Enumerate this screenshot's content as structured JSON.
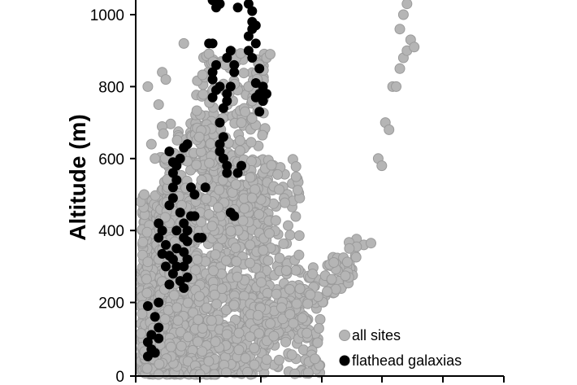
{
  "chart_data": {
    "type": "scatter",
    "ylabel": "Altitude (m)",
    "xlabel": "",
    "ylim": [
      0,
      1000
    ],
    "yticks": [
      0,
      200,
      400,
      600,
      800,
      1000
    ],
    "ytick_labels": [
      "0",
      "200",
      "400",
      "600",
      "800",
      "1000"
    ],
    "legend_position": "bottom-right",
    "colors": {
      "all_sites": "#b5b5b5",
      "all_sites_edge": "#9a9a9a",
      "flathead": "#000000"
    },
    "series": [
      {
        "name": "all sites",
        "clusters": [
          {
            "count": 700,
            "x_range": [
              0.0,
              0.15
            ],
            "y_range": [
              0,
              500
            ]
          },
          {
            "count": 400,
            "x_range": [
              0.05,
              0.25
            ],
            "y_range": [
              100,
              700
            ]
          },
          {
            "count": 350,
            "x_range": [
              0.15,
              0.35
            ],
            "y_range": [
              200,
              900
            ]
          },
          {
            "count": 250,
            "x_range": [
              0.25,
              0.45
            ],
            "y_range": [
              100,
              600
            ]
          },
          {
            "count": 300,
            "x_range": [
              0.0,
              0.5
            ],
            "y_range": [
              0,
              200
            ]
          }
        ],
        "diagonal_band": {
          "count": 180,
          "x_range": [
            0.15,
            0.6
          ],
          "y_start": [
            0,
            0
          ],
          "slope": 1.2
        },
        "points": [
          [
            0.62,
            360
          ],
          [
            0.64,
            365
          ],
          [
            0.6,
            355
          ],
          [
            0.58,
            350
          ],
          [
            0.66,
            600
          ],
          [
            0.67,
            580
          ],
          [
            0.68,
            700
          ],
          [
            0.69,
            680
          ],
          [
            0.7,
            800
          ],
          [
            0.71,
            800
          ],
          [
            0.72,
            850
          ],
          [
            0.73,
            880
          ],
          [
            0.74,
            900
          ],
          [
            0.75,
            930
          ],
          [
            0.76,
            910
          ],
          [
            0.72,
            960
          ],
          [
            0.73,
            1000
          ],
          [
            0.74,
            1030
          ],
          [
            0.35,
            880
          ],
          [
            0.36,
            890
          ],
          [
            0.33,
            860
          ],
          [
            0.3,
            800
          ],
          [
            0.31,
            760
          ],
          [
            0.29,
            730
          ],
          [
            0.28,
            700
          ],
          [
            0.12,
            920
          ],
          [
            0.06,
            840
          ],
          [
            0.07,
            820
          ],
          [
            0.02,
            800
          ],
          [
            0.05,
            750
          ],
          [
            0.03,
            640
          ],
          [
            0.04,
            600
          ],
          [
            0.0,
            480
          ],
          [
            0.01,
            500
          ]
        ]
      },
      {
        "name": "flathead galaxias",
        "points": [
          [
            0.02,
            50
          ],
          [
            0.03,
            70
          ],
          [
            0.04,
            60
          ],
          [
            0.02,
            90
          ],
          [
            0.03,
            110
          ],
          [
            0.05,
            100
          ],
          [
            0.05,
            130
          ],
          [
            0.04,
            160
          ],
          [
            0.05,
            200
          ],
          [
            0.02,
            190
          ],
          [
            0.08,
            250
          ],
          [
            0.09,
            280
          ],
          [
            0.07,
            300
          ],
          [
            0.06,
            335
          ],
          [
            0.05,
            380
          ],
          [
            0.06,
            400
          ],
          [
            0.05,
            420
          ],
          [
            0.07,
            360
          ],
          [
            0.1,
            400
          ],
          [
            0.1,
            350
          ],
          [
            0.09,
            320
          ],
          [
            0.08,
            330
          ],
          [
            0.1,
            300
          ],
          [
            0.11,
            260
          ],
          [
            0.12,
            240
          ],
          [
            0.13,
            270
          ],
          [
            0.12,
            300
          ],
          [
            0.13,
            320
          ],
          [
            0.12,
            340
          ],
          [
            0.13,
            370
          ],
          [
            0.12,
            380
          ],
          [
            0.13,
            400
          ],
          [
            0.12,
            420
          ],
          [
            0.11,
            450
          ],
          [
            0.14,
            440
          ],
          [
            0.15,
            440
          ],
          [
            0.08,
            470
          ],
          [
            0.09,
            490
          ],
          [
            0.09,
            520
          ],
          [
            0.1,
            540
          ],
          [
            0.09,
            560
          ],
          [
            0.09,
            590
          ],
          [
            0.1,
            580
          ],
          [
            0.08,
            620
          ],
          [
            0.11,
            600
          ],
          [
            0.12,
            630
          ],
          [
            0.13,
            640
          ],
          [
            0.14,
            520
          ],
          [
            0.15,
            500
          ],
          [
            0.16,
            380
          ],
          [
            0.17,
            380
          ],
          [
            0.18,
            520
          ],
          [
            0.19,
            920
          ],
          [
            0.2,
            920
          ],
          [
            0.2,
            1040
          ],
          [
            0.21,
            1020
          ],
          [
            0.22,
            1030
          ],
          [
            0.2,
            840
          ],
          [
            0.21,
            860
          ],
          [
            0.2,
            770
          ],
          [
            0.2,
            820
          ],
          [
            0.21,
            790
          ],
          [
            0.22,
            800
          ],
          [
            0.22,
            700
          ],
          [
            0.23,
            660
          ],
          [
            0.22,
            640
          ],
          [
            0.22,
            620
          ],
          [
            0.23,
            600
          ],
          [
            0.24,
            580
          ],
          [
            0.24,
            560
          ],
          [
            0.25,
            450
          ],
          [
            0.26,
            440
          ],
          [
            0.27,
            560
          ],
          [
            0.28,
            580
          ],
          [
            0.23,
            740
          ],
          [
            0.24,
            760
          ],
          [
            0.24,
            780
          ],
          [
            0.25,
            800
          ],
          [
            0.24,
            880
          ],
          [
            0.25,
            900
          ],
          [
            0.26,
            840
          ],
          [
            0.26,
            860
          ],
          [
            0.28,
            1050
          ],
          [
            0.27,
            1020
          ],
          [
            0.3,
            1030
          ],
          [
            0.31,
            1010
          ],
          [
            0.31,
            980
          ],
          [
            0.32,
            970
          ],
          [
            0.31,
            960
          ],
          [
            0.3,
            940
          ],
          [
            0.32,
            920
          ],
          [
            0.3,
            900
          ],
          [
            0.31,
            880
          ],
          [
            0.33,
            850
          ],
          [
            0.32,
            810
          ],
          [
            0.34,
            800
          ],
          [
            0.33,
            780
          ],
          [
            0.32,
            770
          ],
          [
            0.33,
            730
          ],
          [
            0.34,
            760
          ],
          [
            0.35,
            780
          ]
        ]
      }
    ]
  },
  "legend": {
    "items": [
      {
        "label": "all sites",
        "color": "#b5b5b5"
      },
      {
        "label": "flathead galaxias",
        "color": "#000000"
      }
    ]
  }
}
